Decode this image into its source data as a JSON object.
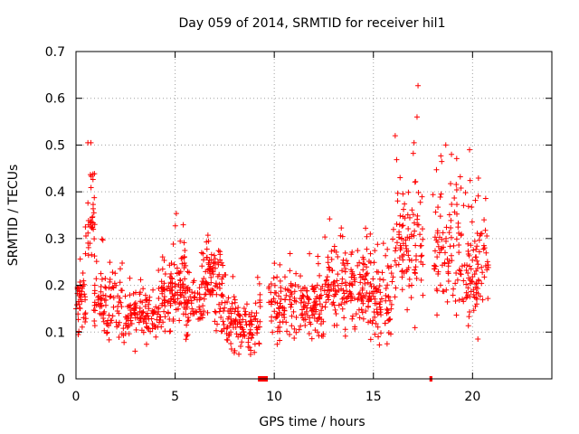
{
  "chart_data": {
    "type": "scatter",
    "title": "Day 059 of 2014, SRMTID for receiver hil1",
    "xlabel": "GPS time / hours",
    "ylabel": "SRMTID / TECUs",
    "xlim": [
      0,
      24
    ],
    "ylim": [
      0,
      0.7
    ],
    "x_ticks": [
      0,
      5,
      10,
      15,
      20
    ],
    "x_tick_labels": [
      "0",
      "5",
      "10",
      "15",
      "20"
    ],
    "y_ticks": [
      0,
      0.1,
      0.2,
      0.3,
      0.4,
      0.5,
      0.6,
      0.7
    ],
    "y_tick_labels": [
      "0",
      "0.1",
      "0.2",
      "0.3",
      "0.4",
      "0.5",
      "0.6",
      "0.7"
    ],
    "grid": true,
    "legend": "none",
    "marker": "+",
    "color": "#ff0000",
    "series": [
      {
        "name": "SRMTID",
        "note": "approx. sampled points read from the dense scatter",
        "segments": [
          {
            "x_range": [
              0.0,
              0.5
            ],
            "y_range": [
              0.07,
              0.26
            ],
            "count": 40
          },
          {
            "x_range": [
              0.45,
              0.95
            ],
            "y_range": [
              0.2,
              0.5
            ],
            "count": 35
          },
          {
            "x_range": [
              0.9,
              2.0
            ],
            "y_range": [
              0.06,
              0.3
            ],
            "count": 70
          },
          {
            "x_range": [
              2.0,
              4.3
            ],
            "y_range": [
              0.05,
              0.25
            ],
            "count": 140
          },
          {
            "x_range": [
              4.3,
              5.0
            ],
            "y_range": [
              0.08,
              0.29
            ],
            "count": 60
          },
          {
            "x_range": [
              5.0,
              5.5
            ],
            "y_range": [
              0.07,
              0.36
            ],
            "count": 50
          },
          {
            "x_range": [
              5.5,
              6.5
            ],
            "y_range": [
              0.07,
              0.28
            ],
            "count": 70
          },
          {
            "x_range": [
              6.5,
              7.0
            ],
            "y_range": [
              0.1,
              0.36
            ],
            "count": 45
          },
          {
            "x_range": [
              7.0,
              7.6
            ],
            "y_range": [
              0.06,
              0.37
            ],
            "count": 45
          },
          {
            "x_range": [
              7.6,
              9.3
            ],
            "y_range": [
              0.03,
              0.22
            ],
            "count": 120
          },
          {
            "x_range": [
              9.7,
              12.5
            ],
            "y_range": [
              0.06,
              0.27
            ],
            "count": 180
          },
          {
            "x_range": [
              12.5,
              15.0
            ],
            "y_range": [
              0.06,
              0.35
            ],
            "count": 180
          },
          {
            "x_range": [
              15.0,
              16.0
            ],
            "y_range": [
              0.05,
              0.3
            ],
            "count": 70
          },
          {
            "x_range": [
              16.0,
              17.5
            ],
            "y_range": [
              0.08,
              0.52
            ],
            "count": 100
          },
          {
            "x_range": [
              18.0,
              19.4
            ],
            "y_range": [
              0.08,
              0.5
            ],
            "count": 90
          },
          {
            "x_range": [
              19.4,
              20.8
            ],
            "y_range": [
              0.05,
              0.45
            ],
            "count": 100
          }
        ],
        "outliers": [
          {
            "x": 17.25,
            "y": 0.627
          },
          {
            "x": 17.2,
            "y": 0.56
          },
          {
            "x": 16.1,
            "y": 0.52
          },
          {
            "x": 0.6,
            "y": 0.505
          },
          {
            "x": 0.75,
            "y": 0.505
          },
          {
            "x": 18.65,
            "y": 0.5
          },
          {
            "x": 19.85,
            "y": 0.49
          },
          {
            "x": 17.05,
            "y": 0.505
          }
        ],
        "zero_clusters": [
          {
            "x_range": [
              9.2,
              9.65
            ],
            "y": 0.0
          },
          {
            "x_range": [
              17.85,
              17.95
            ],
            "y": 0.0
          }
        ]
      }
    ]
  }
}
